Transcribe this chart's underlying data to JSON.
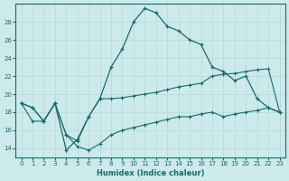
{
  "xlabel": "Humidex (Indice chaleur)",
  "background_color": "#cce9ec",
  "line_color": "#1a6b65",
  "grid_color": "#b2d8da",
  "xlim": [
    -0.5,
    23.5
  ],
  "ylim": [
    13.0,
    30.0
  ],
  "xticks": [
    0,
    1,
    2,
    3,
    4,
    5,
    6,
    7,
    8,
    9,
    10,
    11,
    12,
    13,
    14,
    15,
    16,
    17,
    18,
    19,
    20,
    21,
    22,
    23
  ],
  "yticks": [
    14,
    16,
    18,
    20,
    22,
    24,
    26,
    28
  ],
  "curve1_x": [
    0,
    1,
    2,
    3,
    4,
    5,
    6,
    7,
    8,
    9,
    10,
    11,
    12,
    13,
    14,
    15,
    16,
    17,
    18,
    19,
    20,
    21,
    22,
    23
  ],
  "curve1_y": [
    19.0,
    18.5,
    17.0,
    19.0,
    13.8,
    15.0,
    17.5,
    19.5,
    23.0,
    25.0,
    28.0,
    29.5,
    29.0,
    27.5,
    27.0,
    26.0,
    25.5,
    23.0,
    22.5,
    21.5,
    22.0,
    19.5,
    18.5,
    18.0
  ],
  "curve2_x": [
    0,
    1,
    2,
    3,
    4,
    5,
    6,
    7,
    8,
    9,
    10,
    11,
    12,
    13,
    14,
    15,
    16,
    17,
    18,
    19,
    20,
    21,
    22,
    23
  ],
  "curve2_y": [
    19.0,
    18.5,
    17.0,
    19.0,
    15.5,
    14.8,
    17.5,
    19.5,
    19.5,
    19.6,
    19.8,
    20.0,
    20.2,
    20.5,
    20.8,
    21.0,
    21.2,
    22.0,
    22.2,
    22.3,
    22.5,
    22.7,
    22.8,
    18.0
  ],
  "curve3_x": [
    0,
    1,
    2,
    3,
    4,
    5,
    6,
    7,
    8,
    9,
    10,
    11,
    12,
    13,
    14,
    15,
    16,
    17,
    18,
    19,
    20,
    21,
    22,
    23
  ],
  "curve3_y": [
    19.0,
    17.0,
    17.0,
    19.0,
    15.5,
    14.2,
    13.8,
    14.5,
    15.5,
    16.0,
    16.3,
    16.6,
    16.9,
    17.2,
    17.5,
    17.5,
    17.8,
    18.0,
    17.5,
    17.8,
    18.0,
    18.2,
    18.5,
    18.0
  ]
}
